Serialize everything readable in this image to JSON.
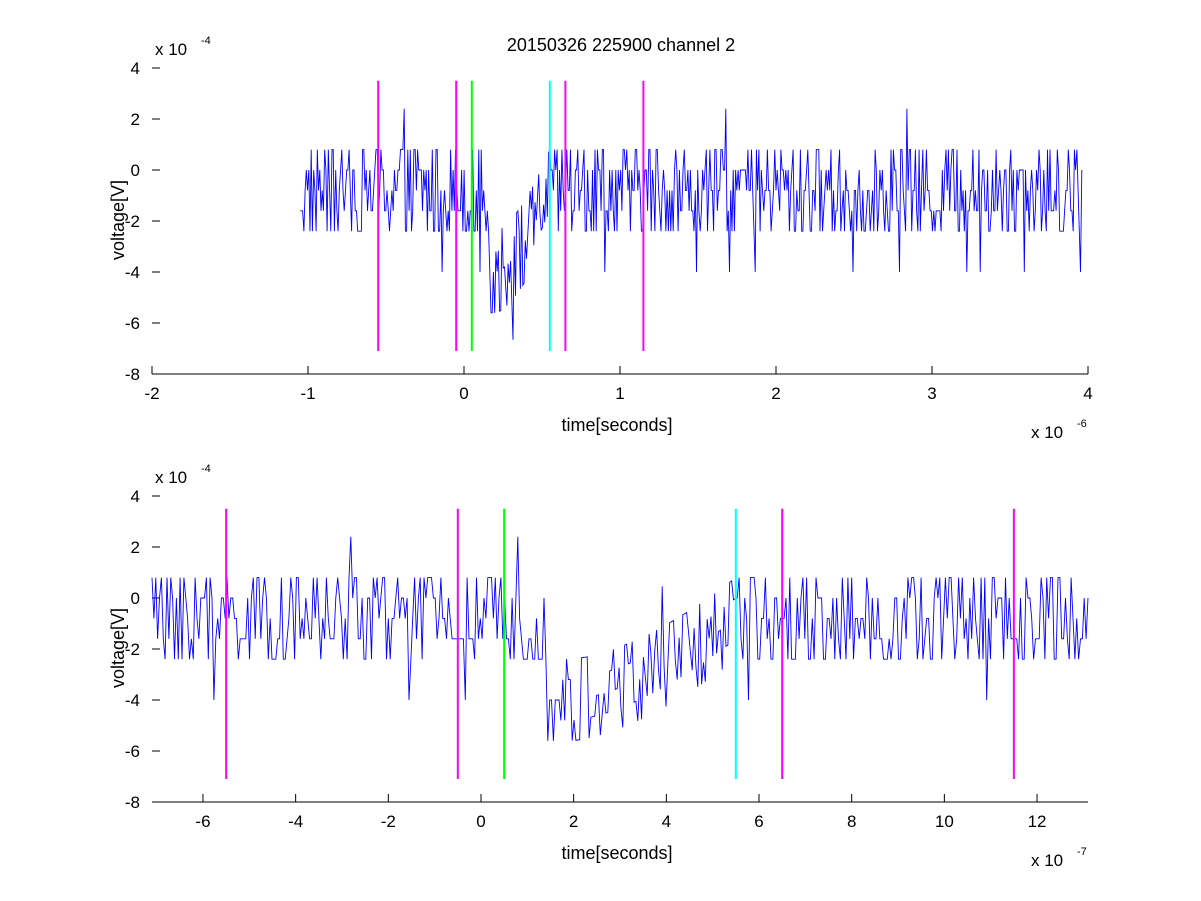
{
  "chart_data": [
    {
      "type": "line",
      "title": "20150326 225900 channel 2",
      "xlabel": "time[seconds]",
      "ylabel": "voltage[V]",
      "xlim": [
        -2,
        4
      ],
      "ylim": [
        -8,
        4
      ],
      "x_ticks": [
        -2,
        -1,
        0,
        1,
        2,
        3,
        4
      ],
      "y_ticks": [
        -8,
        -6,
        -4,
        -2,
        0,
        2,
        4
      ],
      "x_tick_labels": [
        "-2",
        "-1",
        "0",
        "1",
        "2",
        "3",
        "4"
      ],
      "y_tick_labels": [
        "-8",
        "-6",
        "-4",
        "-2",
        "0",
        "2",
        "4"
      ],
      "x_multiplier": "x 10",
      "x_exponent": "-6",
      "y_multiplier": "x 10",
      "y_exponent": "-4",
      "trace": {
        "color": "#0000ff",
        "x_start": -1.05,
        "x_end": 3.96,
        "points": 640,
        "noise_band_levels": [
          -2.4,
          -1.6,
          -0.8,
          0,
          0.8
        ],
        "dip_start": 0.15,
        "dip_end": 0.55,
        "dip_min": -6.4
      },
      "markers": [
        {
          "x": -0.55,
          "color": "#ff00ff"
        },
        {
          "x": -0.05,
          "color": "#ff00ff"
        },
        {
          "x": 0.05,
          "color": "#00ff00"
        },
        {
          "x": 0.55,
          "color": "#00ffff"
        },
        {
          "x": 0.65,
          "color": "#ff00ff"
        },
        {
          "x": 1.15,
          "color": "#ff00ff"
        }
      ],
      "marker_y_range": [
        -7.1,
        3.5
      ]
    },
    {
      "type": "line",
      "title": "",
      "xlabel": "time[seconds]",
      "ylabel": "voltage[V]",
      "xlim": [
        -7.1,
        13.1
      ],
      "ylim": [
        -8,
        4
      ],
      "x_ticks": [
        -6,
        -4,
        -2,
        0,
        2,
        4,
        6,
        8,
        10,
        12
      ],
      "y_ticks": [
        -8,
        -6,
        -4,
        -2,
        0,
        2,
        4
      ],
      "x_tick_labels": [
        "-6",
        "-4",
        "-2",
        "0",
        "2",
        "4",
        "6",
        "8",
        "10",
        "12"
      ],
      "y_tick_labels": [
        "-8",
        "-6",
        "-4",
        "-2",
        "0",
        "2",
        "4"
      ],
      "x_multiplier": "x 10",
      "x_exponent": "-7",
      "y_multiplier": "x 10",
      "y_exponent": "-4",
      "trace": {
        "color": "#0000ff",
        "x_start": -7.1,
        "x_end": 13.1,
        "points": 500,
        "noise_band_levels": [
          -2.4,
          -1.6,
          -0.8,
          0,
          0.8
        ],
        "dip_start": 1.4,
        "dip_end": 5.5,
        "dip_min": -6.4
      },
      "markers": [
        {
          "x": -5.5,
          "color": "#ff00ff"
        },
        {
          "x": -0.5,
          "color": "#ff00ff"
        },
        {
          "x": 0.5,
          "color": "#00ff00"
        },
        {
          "x": 5.5,
          "color": "#00ffff"
        },
        {
          "x": 6.5,
          "color": "#ff00ff"
        },
        {
          "x": 11.5,
          "color": "#ff00ff"
        }
      ],
      "marker_y_range": [
        -7.1,
        3.5
      ]
    }
  ]
}
